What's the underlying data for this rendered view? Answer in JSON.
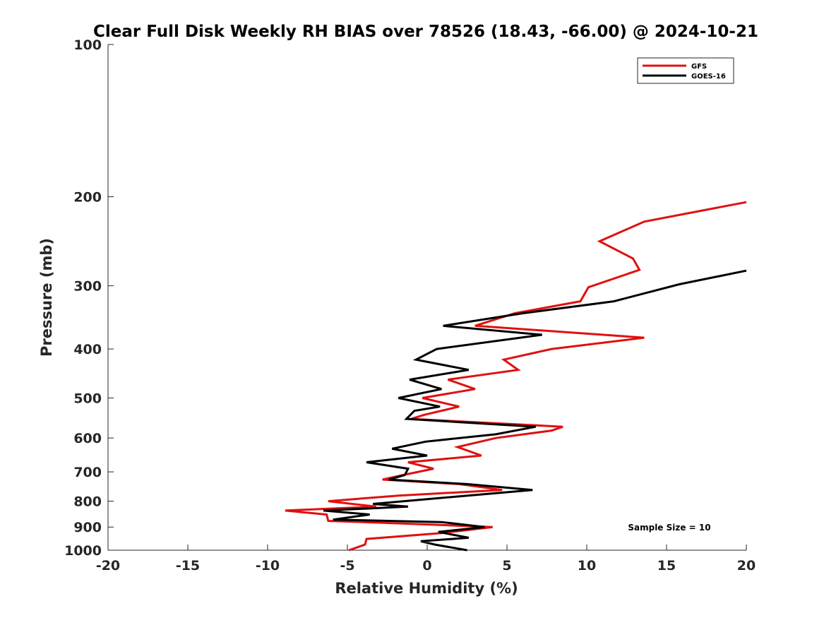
{
  "chart_data": {
    "type": "line",
    "title": "Clear Full Disk Weekly RH BIAS over 78526 (18.43, -66.00) @ 2024-10-21",
    "xlabel": "Relative Humidity (%)",
    "ylabel": "Pressure (mb)",
    "xlim": [
      -20,
      20
    ],
    "ylim": [
      100,
      1000
    ],
    "yscale": "log",
    "y_reversed": true,
    "grid": false,
    "legend_position": "top-right",
    "xticks": [
      -20,
      -15,
      -10,
      -5,
      0,
      5,
      10,
      15,
      20
    ],
    "xtick_labels": [
      "-20",
      "-15",
      "-10",
      "-5",
      "0",
      "5",
      "10",
      "15",
      "20"
    ],
    "yticks": [
      100,
      200,
      300,
      400,
      500,
      600,
      700,
      800,
      900,
      1000
    ],
    "ytick_labels": [
      "100",
      "200",
      "300",
      "400",
      "500",
      "600",
      "700",
      "800",
      "900",
      "1000"
    ],
    "annotation": "Sample Size = 10",
    "series": [
      {
        "name": "GFS",
        "color": "#e01010",
        "points": [
          [
            20.0,
            205
          ],
          [
            13.6,
            224
          ],
          [
            10.8,
            245
          ],
          [
            12.9,
            265
          ],
          [
            13.3,
            279
          ],
          [
            10.1,
            302
          ],
          [
            9.6,
            322
          ],
          [
            5.5,
            340
          ],
          [
            3.0,
            360
          ],
          [
            13.6,
            380
          ],
          [
            7.8,
            400
          ],
          [
            4.8,
            420
          ],
          [
            5.7,
            440
          ],
          [
            1.3,
            460
          ],
          [
            3.0,
            480
          ],
          [
            -0.3,
            500
          ],
          [
            2.0,
            520
          ],
          [
            -0.2,
            540
          ],
          [
            -1.0,
            550
          ],
          [
            8.5,
            570
          ],
          [
            7.8,
            580
          ],
          [
            4.3,
            600
          ],
          [
            1.9,
            625
          ],
          [
            3.4,
            650
          ],
          [
            -1.2,
            670
          ],
          [
            0.4,
            690
          ],
          [
            -1.5,
            710
          ],
          [
            -2.8,
            725
          ],
          [
            2.0,
            740
          ],
          [
            4.7,
            760
          ],
          [
            -1.8,
            780
          ],
          [
            -6.2,
            800
          ],
          [
            -3.2,
            820
          ],
          [
            -8.9,
            835
          ],
          [
            -6.3,
            850
          ],
          [
            -6.2,
            875
          ],
          [
            -1.8,
            885
          ],
          [
            4.1,
            900
          ],
          [
            0.9,
            925
          ],
          [
            -3.8,
            950
          ],
          [
            -3.9,
            975
          ],
          [
            -4.9,
            1000
          ]
        ]
      },
      {
        "name": "GOES-16",
        "color": "#000000",
        "points": [
          [
            20.0,
            280
          ],
          [
            15.8,
            298
          ],
          [
            11.7,
            322
          ],
          [
            6.0,
            340
          ],
          [
            1.0,
            360
          ],
          [
            7.2,
            375
          ],
          [
            0.6,
            400
          ],
          [
            -0.7,
            420
          ],
          [
            2.6,
            440
          ],
          [
            -1.1,
            460
          ],
          [
            0.9,
            480
          ],
          [
            -1.8,
            500
          ],
          [
            0.8,
            520
          ],
          [
            -0.8,
            530
          ],
          [
            -1.3,
            550
          ],
          [
            6.8,
            570
          ],
          [
            4.3,
            590
          ],
          [
            -0.1,
            610
          ],
          [
            -2.2,
            630
          ],
          [
            0.0,
            650
          ],
          [
            -3.8,
            670
          ],
          [
            -1.2,
            690
          ],
          [
            -1.4,
            710
          ],
          [
            -2.4,
            725
          ],
          [
            2.5,
            740
          ],
          [
            6.6,
            760
          ],
          [
            -3.4,
            810
          ],
          [
            -1.2,
            820
          ],
          [
            -6.5,
            835
          ],
          [
            -3.6,
            850
          ],
          [
            -5.9,
            870
          ],
          [
            0.9,
            880
          ],
          [
            3.6,
            900
          ],
          [
            0.7,
            920
          ],
          [
            2.6,
            945
          ],
          [
            -0.4,
            960
          ],
          [
            0.5,
            975
          ],
          [
            2.5,
            1000
          ]
        ]
      }
    ]
  }
}
